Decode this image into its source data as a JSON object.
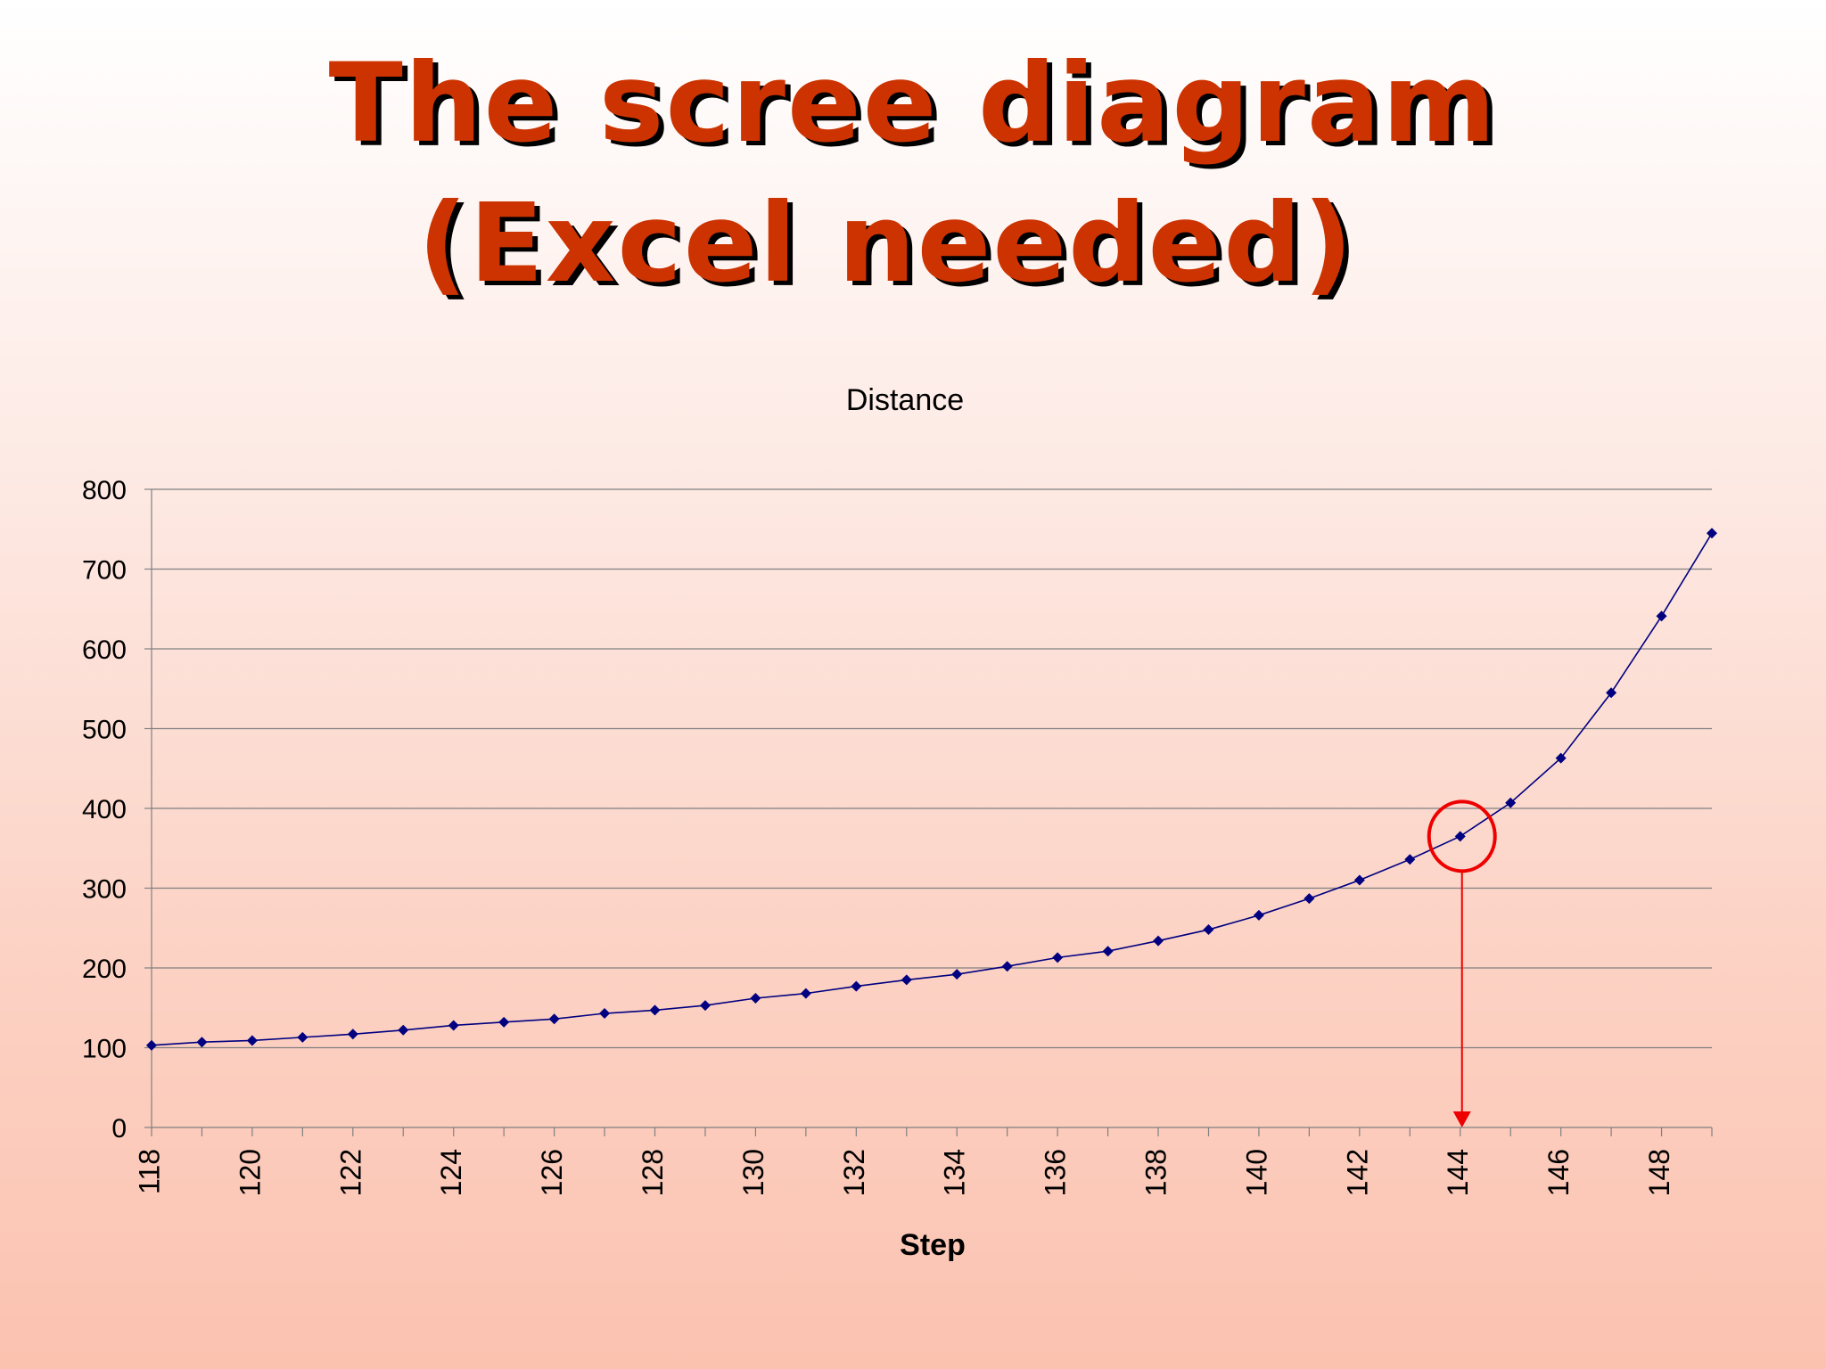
{
  "slide": {
    "title_line1": "The scree diagram",
    "title_line2": "(Excel needed)"
  },
  "colors": {
    "title": "#cc3300",
    "series": "#000080",
    "highlight": "#ee0000",
    "grid": "#808080"
  },
  "chart_data": {
    "type": "line",
    "title": "Distance",
    "xlabel": "Step",
    "ylabel": "",
    "ylim": [
      0,
      800
    ],
    "yticks": [
      0,
      100,
      200,
      300,
      400,
      500,
      600,
      700,
      800
    ],
    "xticks": [
      118,
      120,
      122,
      124,
      126,
      128,
      130,
      132,
      134,
      136,
      138,
      140,
      142,
      144,
      146,
      148
    ],
    "xlim": [
      118,
      149
    ],
    "grid": true,
    "legend": "none",
    "x": [
      118,
      119,
      120,
      121,
      122,
      123,
      124,
      125,
      126,
      127,
      128,
      129,
      130,
      131,
      132,
      133,
      134,
      135,
      136,
      137,
      138,
      139,
      140,
      141,
      142,
      143,
      144,
      145,
      146,
      147,
      148,
      149
    ],
    "values": [
      103,
      107,
      109,
      113,
      117,
      122,
      128,
      132,
      136,
      143,
      147,
      153,
      162,
      168,
      177,
      185,
      192,
      202,
      213,
      221,
      234,
      248,
      266,
      287,
      310,
      336,
      365,
      407,
      463,
      545,
      641,
      745
    ],
    "highlight": {
      "x": 144,
      "y": 365,
      "marker": "circle with arrow down to x-axis"
    }
  }
}
